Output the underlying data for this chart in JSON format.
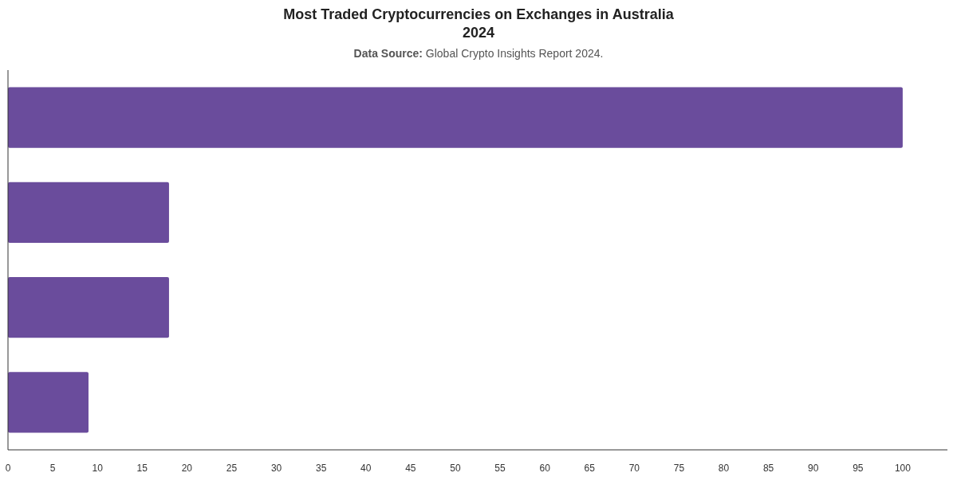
{
  "chart_data": {
    "type": "bar",
    "orientation": "horizontal",
    "title": "Most Traded Cryptocurrencies on Exchanges in Australia\n2024",
    "subtitle": "Data Source: Global Crypto Insights Report 2024.",
    "categories": [
      null,
      null,
      null,
      null
    ],
    "values": [
      100,
      18,
      18,
      9
    ],
    "color": "#6a4c9c",
    "xlim": [
      0,
      105
    ],
    "xticks": [
      0,
      5,
      10,
      15,
      20,
      25,
      30,
      35,
      40,
      45,
      50,
      55,
      60,
      65,
      70,
      75,
      80,
      85,
      90,
      95,
      100
    ],
    "grid": false
  }
}
